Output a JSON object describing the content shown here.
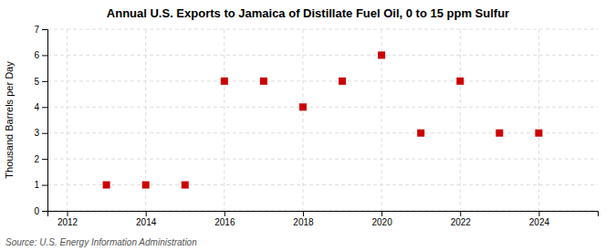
{
  "chart_data": {
    "type": "scatter",
    "title": "Annual U.S. Exports to Jamaica of Distillate Fuel Oil, 0 to 15 ppm Sulfur",
    "ylabel": "Thousand Barrels per Day",
    "source": "Source: U.S. Energy Information Administration",
    "x": [
      2013,
      2014,
      2015,
      2016,
      2017,
      2018,
      2019,
      2020,
      2021,
      2022,
      2023,
      2024
    ],
    "values": [
      1,
      1,
      1,
      5,
      5,
      4,
      5,
      6,
      3,
      5,
      3,
      3
    ],
    "xlim": [
      2011.5,
      2025.5
    ],
    "ylim": [
      0,
      7
    ],
    "xticks": [
      2012,
      2014,
      2016,
      2018,
      2020,
      2022,
      2024
    ],
    "yticks": [
      0,
      1,
      2,
      3,
      4,
      5,
      6,
      7
    ],
    "color": "#cc0000",
    "marker": "square",
    "grid": true
  }
}
